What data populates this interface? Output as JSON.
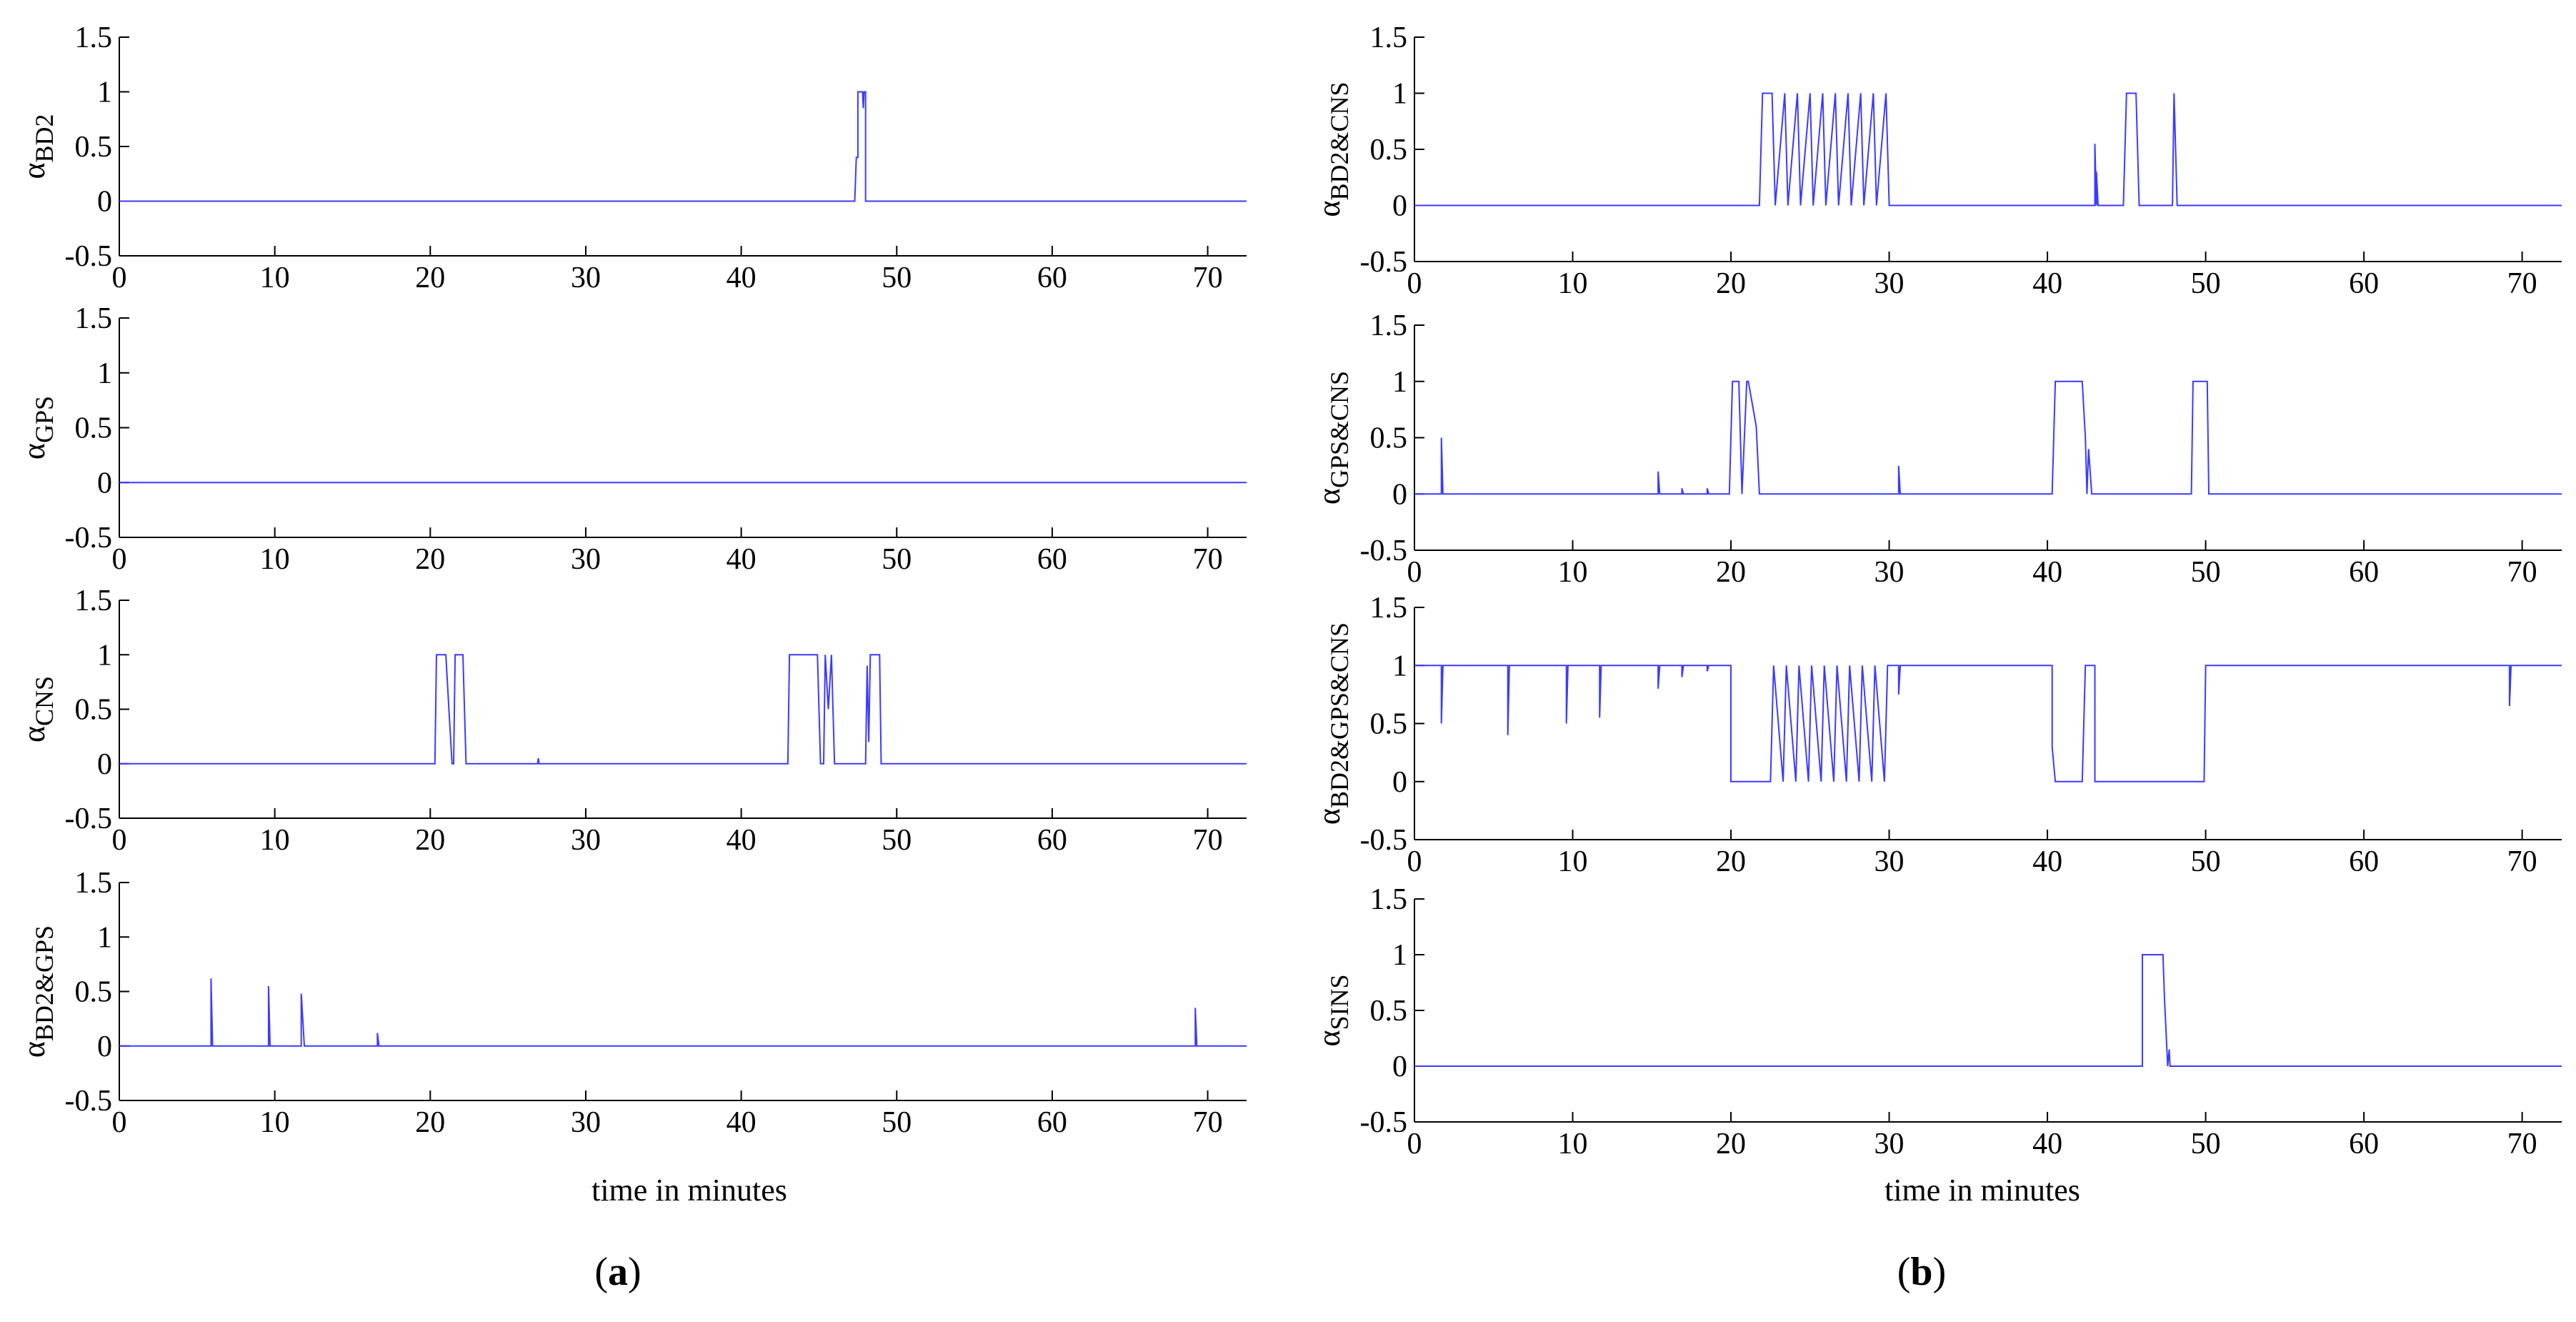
{
  "colors": {
    "line": "#3b3bff",
    "axis": "#000000",
    "background": "#ffffff"
  },
  "panels": {
    "a": {
      "label_prefix": "(",
      "label_letter": "a",
      "label_suffix": ")",
      "xlabel": "time in minutes"
    },
    "b": {
      "label_prefix": "(",
      "label_letter": "b",
      "label_suffix": ")",
      "xlabel": "time in minutes"
    }
  },
  "chart_data": [
    {
      "type": "line",
      "panel": "a",
      "row": 0,
      "ylabel_base": "α",
      "ylabel_sub": "BD2",
      "xlim": [
        0,
        72.5
      ],
      "ylim": [
        -0.5,
        1.5
      ],
      "xticks": [
        0,
        10,
        20,
        30,
        40,
        50,
        60,
        70
      ],
      "yticks": [
        -0.5,
        0,
        0.5,
        1,
        1.5
      ],
      "series": [
        {
          "name": "α_BD2",
          "x": [
            0,
            47.3,
            47.4,
            47.5,
            47.5,
            47.8,
            47.85,
            47.9,
            48.0,
            48.0,
            72.5
          ],
          "y": [
            0,
            0,
            0.4,
            0.4,
            1,
            1,
            0.85,
            1,
            1,
            0,
            0
          ]
        }
      ]
    },
    {
      "type": "line",
      "panel": "a",
      "row": 1,
      "ylabel_base": "α",
      "ylabel_sub": "GPS",
      "xlim": [
        0,
        72.5
      ],
      "ylim": [
        -0.5,
        1.5
      ],
      "xticks": [
        0,
        10,
        20,
        30,
        40,
        50,
        60,
        70
      ],
      "yticks": [
        -0.5,
        0,
        0.5,
        1,
        1.5
      ],
      "series": [
        {
          "name": "α_GPS",
          "x": [
            0,
            72.5
          ],
          "y": [
            0,
            0
          ]
        }
      ]
    },
    {
      "type": "line",
      "panel": "a",
      "row": 2,
      "ylabel_base": "α",
      "ylabel_sub": "CNS",
      "xlim": [
        0,
        72.5
      ],
      "ylim": [
        -0.5,
        1.5
      ],
      "xticks": [
        0,
        10,
        20,
        30,
        40,
        50,
        60,
        70
      ],
      "yticks": [
        -0.5,
        0,
        0.5,
        1,
        1.5
      ],
      "series": [
        {
          "name": "α_CNS",
          "x": [
            0,
            20.3,
            20.4,
            21.0,
            21.2,
            21.4,
            21.5,
            21.6,
            22.1,
            22.3,
            26.9,
            26.95,
            27.0,
            43.0,
            43.1,
            44.9,
            45.1,
            45.3,
            45.4,
            45.6,
            45.8,
            46.0,
            46.1,
            48.0,
            48.1,
            48.2,
            48.3,
            48.4,
            48.9,
            49.0,
            72.5
          ],
          "y": [
            0,
            0,
            1,
            1,
            0.5,
            0,
            0,
            1,
            1,
            0,
            0,
            0.05,
            0,
            0,
            1,
            1,
            0,
            0,
            1,
            0.5,
            1,
            0,
            0,
            0,
            0.9,
            0.2,
            1,
            1,
            1,
            0,
            0
          ]
        }
      ]
    },
    {
      "type": "line",
      "panel": "a",
      "row": 3,
      "ylabel_base": "α",
      "ylabel_sub": "BD2&GPS",
      "xlim": [
        0,
        72.5
      ],
      "ylim": [
        -0.5,
        1.5
      ],
      "xticks": [
        0,
        10,
        20,
        30,
        40,
        50,
        60,
        70
      ],
      "yticks": [
        -0.5,
        0,
        0.5,
        1,
        1.5
      ],
      "series": [
        {
          "name": "α_BD2&GPS",
          "x": [
            0,
            5.9,
            5.9,
            6.0,
            9.6,
            9.6,
            9.7,
            11.7,
            11.7,
            11.9,
            16.6,
            16.6,
            16.7,
            69.2,
            69.2,
            69.3,
            72.5
          ],
          "y": [
            0,
            0,
            0.62,
            0,
            0,
            0.55,
            0,
            0,
            0.48,
            0,
            0,
            0.12,
            0,
            0,
            0.35,
            0,
            0
          ]
        }
      ]
    },
    {
      "type": "line",
      "panel": "b",
      "row": 0,
      "ylabel_base": "α",
      "ylabel_sub": "BD2&CNS",
      "xlim": [
        0,
        72.5
      ],
      "ylim": [
        -0.5,
        1.5
      ],
      "xticks": [
        0,
        10,
        20,
        30,
        40,
        50,
        60,
        70
      ],
      "yticks": [
        -0.5,
        0,
        0.5,
        1,
        1.5
      ],
      "series": [
        {
          "name": "α_BD2&CNS",
          "x": [
            0,
            21.8,
            22.0,
            22.6,
            22.8,
            23.4,
            23.6,
            24.2,
            24.4,
            25.0,
            25.2,
            25.8,
            26.0,
            26.6,
            26.8,
            27.4,
            27.6,
            28.2,
            28.4,
            29.0,
            29.2,
            29.8,
            30.0,
            43.0,
            43.0,
            43.1,
            43.1,
            43.2,
            44.8,
            45.0,
            45.6,
            45.8,
            47.9,
            48.0,
            48.2,
            72.5
          ],
          "y": [
            0,
            0,
            1,
            1,
            0,
            1,
            0,
            1,
            0,
            1,
            0,
            1,
            0,
            1,
            0,
            1,
            0,
            1,
            0,
            1,
            0,
            1,
            0,
            0,
            0.55,
            0,
            0.3,
            0,
            0,
            1,
            1,
            0,
            0,
            1,
            0,
            0
          ]
        }
      ]
    },
    {
      "type": "line",
      "panel": "b",
      "row": 1,
      "ylabel_base": "α",
      "ylabel_sub": "GPS&CNS",
      "xlim": [
        0,
        72.5
      ],
      "ylim": [
        -0.5,
        1.5
      ],
      "xticks": [
        0,
        10,
        20,
        30,
        40,
        50,
        60,
        70
      ],
      "yticks": [
        -0.5,
        0,
        0.5,
        1,
        1.5
      ],
      "series": [
        {
          "name": "α_GPS&CNS",
          "x": [
            0,
            1.7,
            1.7,
            1.8,
            15.4,
            15.4,
            15.5,
            16.9,
            16.9,
            17.0,
            18.5,
            18.5,
            18.6,
            19.9,
            20.1,
            20.5,
            20.7,
            21.0,
            21.1,
            21.6,
            21.8,
            30.6,
            30.6,
            30.7,
            40.3,
            40.5,
            42.2,
            42.4,
            42.5,
            42.6,
            42.8,
            49.1,
            49.2,
            50.1,
            50.2,
            72.5
          ],
          "y": [
            0,
            0,
            0.5,
            0,
            0,
            0.2,
            0,
            0,
            0.05,
            0,
            0,
            0.05,
            0,
            0,
            1,
            1,
            0,
            1,
            1,
            0.6,
            0,
            0,
            0.25,
            0,
            0,
            1,
            1,
            0.5,
            0,
            0.4,
            0,
            0,
            1,
            1,
            0,
            0
          ]
        }
      ]
    },
    {
      "type": "line",
      "panel": "b",
      "row": 2,
      "ylabel_base": "α",
      "ylabel_sub": "BD2&GPS&CNS",
      "xlim": [
        0,
        72.5
      ],
      "ylim": [
        -0.5,
        1.5
      ],
      "xticks": [
        0,
        10,
        20,
        30,
        40,
        50,
        60,
        70
      ],
      "yticks": [
        -0.5,
        0,
        0.5,
        1,
        1.5
      ],
      "series": [
        {
          "name": "α_BD2&GPS&CNS",
          "x": [
            0,
            1.7,
            1.7,
            1.8,
            5.9,
            5.9,
            6.0,
            9.6,
            9.6,
            9.7,
            11.7,
            11.7,
            11.8,
            15.4,
            15.4,
            15.5,
            16.9,
            16.9,
            17.0,
            18.5,
            18.5,
            18.6,
            20.0,
            20.0,
            22.5,
            22.7,
            23.3,
            23.5,
            24.1,
            24.3,
            24.9,
            25.1,
            25.7,
            25.9,
            26.5,
            26.7,
            27.3,
            27.5,
            28.1,
            28.3,
            28.9,
            29.1,
            29.7,
            29.9,
            30.6,
            30.6,
            30.7,
            40.3,
            40.3,
            40.5,
            42.2,
            42.4,
            42.5,
            43.0,
            43.0,
            49.9,
            50.0,
            69.2,
            69.2,
            69.3,
            72.5
          ],
          "y": [
            1,
            1,
            0.5,
            1,
            1,
            0.4,
            1,
            1,
            0.5,
            1,
            1,
            0.55,
            1,
            1,
            0.8,
            1,
            1,
            0.9,
            1,
            1,
            0.95,
            1,
            1,
            0,
            0,
            1,
            0,
            1,
            0,
            1,
            0,
            1,
            0,
            1,
            0,
            1,
            0,
            1,
            0,
            1,
            0,
            1,
            0,
            1,
            1,
            0.75,
            1,
            1,
            0.3,
            0,
            0,
            1,
            1,
            1,
            0,
            0,
            1,
            1,
            0.65,
            1,
            1
          ]
        }
      ]
    },
    {
      "type": "line",
      "panel": "b",
      "row": 3,
      "ylabel_base": "α",
      "ylabel_sub": "SINS",
      "xlim": [
        0,
        72.5
      ],
      "ylim": [
        -0.5,
        1.5
      ],
      "xticks": [
        0,
        10,
        20,
        30,
        40,
        50,
        60,
        70
      ],
      "yticks": [
        -0.5,
        0,
        0.5,
        1,
        1.5
      ],
      "series": [
        {
          "name": "α_SINS",
          "x": [
            0,
            46.0,
            46.0,
            47.3,
            47.4,
            47.6,
            47.7,
            47.75,
            47.8,
            72.5
          ],
          "y": [
            0,
            0,
            1,
            1,
            0.6,
            0,
            0.15,
            0,
            0,
            0
          ]
        }
      ]
    }
  ]
}
